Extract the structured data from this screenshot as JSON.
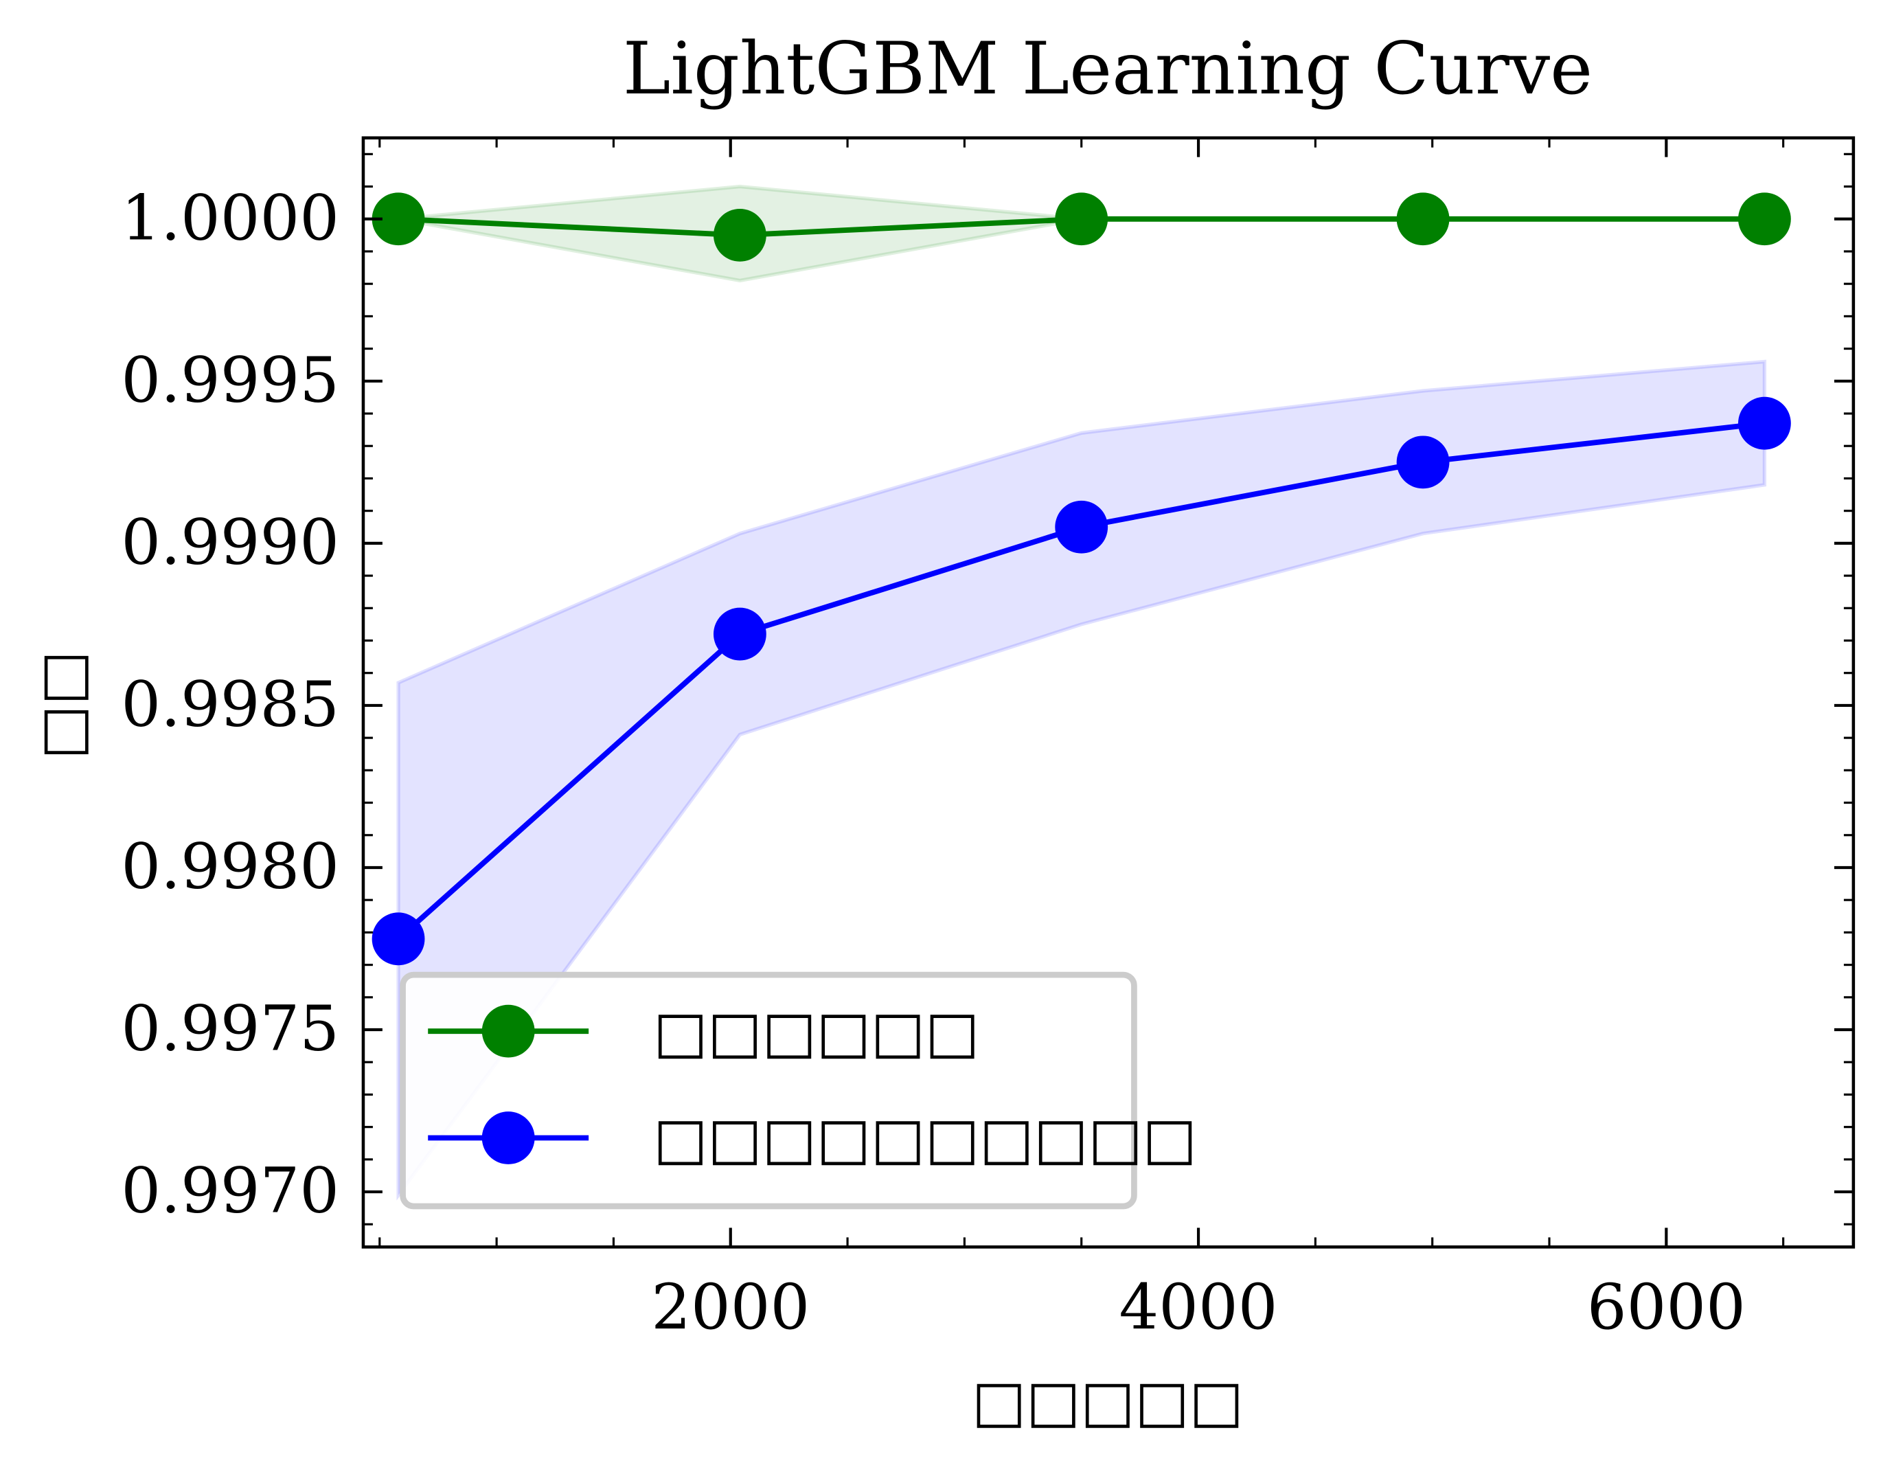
{
  "chart_data": {
    "type": "line",
    "title": "LightGBM Learning Curve",
    "xlabel": "□□□□□",
    "ylabel": "□□",
    "xlim": [
      430,
      6800
    ],
    "ylim": [
      0.99683,
      1.00025
    ],
    "x_ticks": [
      2000,
      4000,
      6000
    ],
    "x_tick_labels": [
      "2000",
      "4000",
      "6000"
    ],
    "y_ticks": [
      0.997,
      0.9975,
      0.998,
      0.9985,
      0.999,
      0.9995,
      1.0
    ],
    "y_tick_labels": [
      "0.9970",
      "0.9975",
      "0.9980",
      "0.9985",
      "0.9990",
      "0.9995",
      "1.0000"
    ],
    "x": [
      580,
      2040,
      3500,
      4960,
      6420
    ],
    "series": [
      {
        "name": "□□□□□□",
        "color": "#008000",
        "fill": "#008000",
        "values": [
          1.0,
          0.99995,
          1.0,
          1.0,
          1.0
        ],
        "upper": [
          1.0,
          1.0001,
          1.0,
          1.0,
          1.0
        ],
        "lower": [
          1.0,
          0.99981,
          1.0,
          1.0,
          1.0
        ]
      },
      {
        "name": "□□□□□□□□□□",
        "color": "#0000ff",
        "fill": "#0000ff",
        "values": [
          0.99778,
          0.99872,
          0.99905,
          0.99925,
          0.99937
        ],
        "upper": [
          0.99857,
          0.99903,
          0.99934,
          0.99947,
          0.99956
        ],
        "lower": [
          0.99699,
          0.99841,
          0.99875,
          0.99903,
          0.99918
        ]
      }
    ],
    "legend": {
      "location": "lower-left"
    },
    "grid": false
  }
}
